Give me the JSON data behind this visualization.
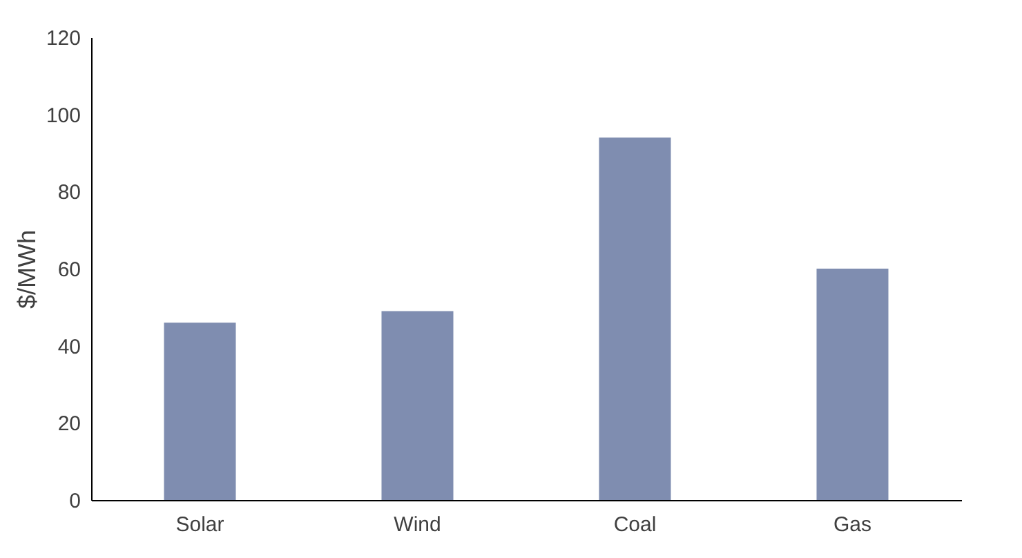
{
  "chart_data": {
    "type": "bar",
    "ylabel": "$/MWh",
    "categories": [
      "Solar",
      "Wind",
      "Coal",
      "Gas"
    ],
    "values": [
      46,
      49,
      94,
      60
    ],
    "color": "#7f8db0",
    "ylim": [
      0,
      120
    ],
    "yticks": [
      0,
      20,
      40,
      60,
      80,
      100,
      120
    ],
    "grid": false
  }
}
